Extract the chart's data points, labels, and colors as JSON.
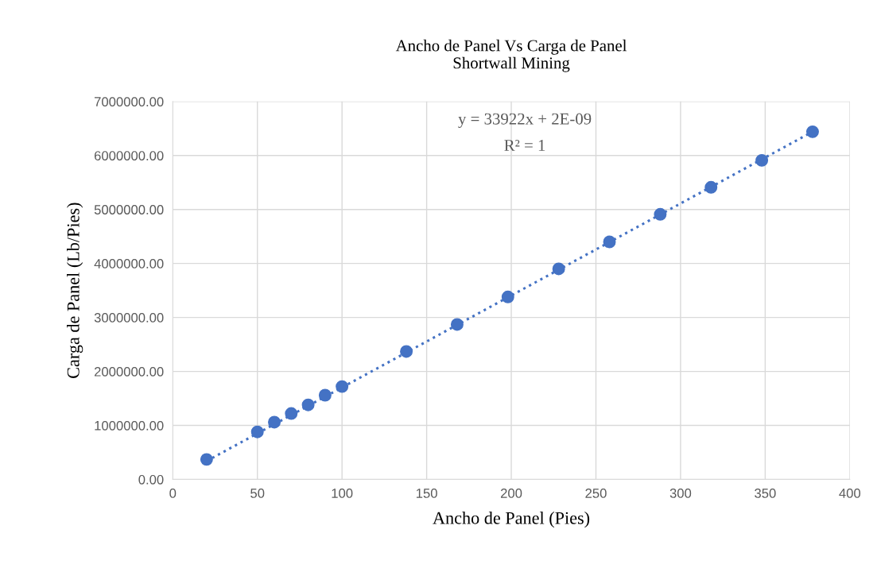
{
  "chart_data": {
    "type": "scatter",
    "title": "Ancho de Panel Vs Carga de Panel\nShortwall Mining",
    "xlabel": "Ancho de Panel (Pies)",
    "ylabel": "Carga de Panel (Lb/Pies)",
    "series": [
      {
        "color": "#4472c4",
        "x": [
          20,
          50,
          60,
          70,
          80,
          90,
          100,
          138,
          168,
          198,
          228,
          258,
          288,
          318,
          348,
          378
        ],
        "values": [
          370000,
          880000,
          1060000,
          1220000,
          1380000,
          1560000,
          1720000,
          2370000,
          2870000,
          3380000,
          3900000,
          4400000,
          4910000,
          5410000,
          5910000,
          6440000
        ]
      },
      {
        "type": "line",
        "color": "#4472c4",
        "line_style": "dotted",
        "marker": "none",
        "x": [
          20,
          378
        ],
        "values": [
          340000,
          6440000
        ]
      }
    ],
    "xlim": [
      0,
      400
    ],
    "xticks": [
      0,
      50,
      100,
      150,
      200,
      250,
      300,
      350,
      400
    ],
    "ylim": [
      0,
      7000000
    ],
    "yticks": [
      {
        "value": 0,
        "label": "0.00"
      },
      {
        "value": 1000000,
        "label": "1000000.00"
      },
      {
        "value": 2000000,
        "label": "2000000.00"
      },
      {
        "value": 3000000,
        "label": "3000000.00"
      },
      {
        "value": 4000000,
        "label": "4000000.00"
      },
      {
        "value": 5000000,
        "label": "5000000.00"
      },
      {
        "value": 6000000,
        "label": "6000000.00"
      },
      {
        "value": 7000000,
        "label": "7000000.00"
      }
    ],
    "grid": true,
    "legend": false,
    "marker": "circle",
    "annotations": [
      "y = 33922x + 2E-09",
      "R² = 1"
    ]
  }
}
